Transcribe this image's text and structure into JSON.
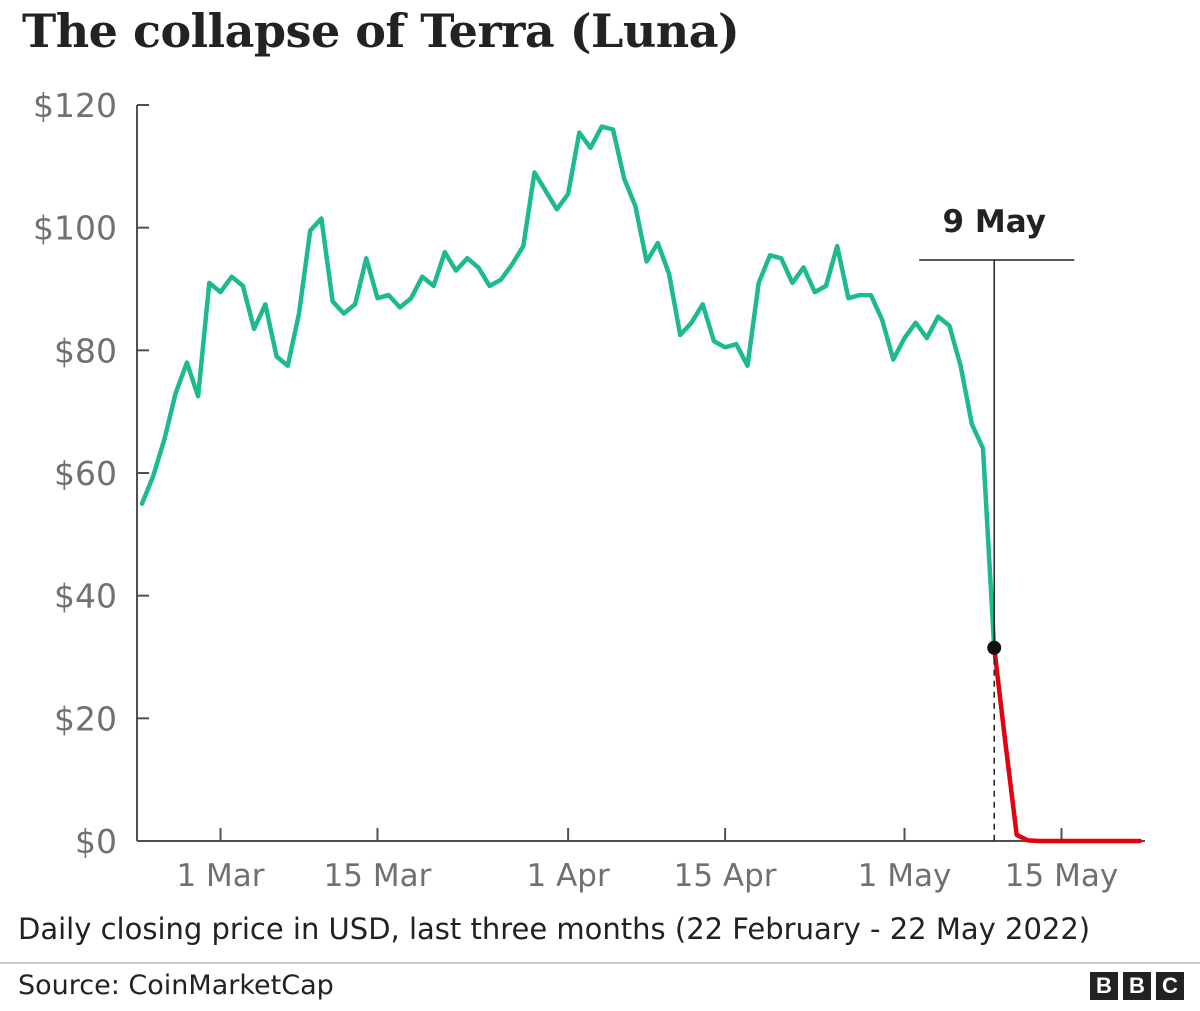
{
  "chart_data": {
    "type": "line",
    "title": "The collapse of Terra (Luna)",
    "subtitle": "Daily closing price in USD, last three months (22 February - 22 May 2022)",
    "source": "Source: CoinMarketCap",
    "ylim": [
      0,
      120
    ],
    "y_ticks": [
      0,
      20,
      40,
      60,
      80,
      100,
      120
    ],
    "y_tick_labels": [
      "$0",
      "$20",
      "$40",
      "$60",
      "$80",
      "$100",
      "$120"
    ],
    "x_ticks": [
      "2022-03-01",
      "2022-03-15",
      "2022-04-01",
      "2022-04-15",
      "2022-05-01",
      "2022-05-15"
    ],
    "x_tick_labels": [
      "1 Mar",
      "15 Mar",
      "1 Apr",
      "15 Apr",
      "1 May",
      "15 May"
    ],
    "grid": false,
    "annotation": {
      "label": "9 May",
      "date": "2022-05-09"
    },
    "colors": {
      "before": "#1db990",
      "after": "#e3000f"
    },
    "x": [
      "2022-02-22",
      "2022-02-23",
      "2022-02-24",
      "2022-02-25",
      "2022-02-26",
      "2022-02-27",
      "2022-02-28",
      "2022-03-01",
      "2022-03-02",
      "2022-03-03",
      "2022-03-04",
      "2022-03-05",
      "2022-03-06",
      "2022-03-07",
      "2022-03-08",
      "2022-03-09",
      "2022-03-10",
      "2022-03-11",
      "2022-03-12",
      "2022-03-13",
      "2022-03-14",
      "2022-03-15",
      "2022-03-16",
      "2022-03-17",
      "2022-03-18",
      "2022-03-19",
      "2022-03-20",
      "2022-03-21",
      "2022-03-22",
      "2022-03-23",
      "2022-03-24",
      "2022-03-25",
      "2022-03-26",
      "2022-03-27",
      "2022-03-28",
      "2022-03-29",
      "2022-03-30",
      "2022-03-31",
      "2022-04-01",
      "2022-04-02",
      "2022-04-03",
      "2022-04-04",
      "2022-04-05",
      "2022-04-06",
      "2022-04-07",
      "2022-04-08",
      "2022-04-09",
      "2022-04-10",
      "2022-04-11",
      "2022-04-12",
      "2022-04-13",
      "2022-04-14",
      "2022-04-15",
      "2022-04-16",
      "2022-04-17",
      "2022-04-18",
      "2022-04-19",
      "2022-04-20",
      "2022-04-21",
      "2022-04-22",
      "2022-04-23",
      "2022-04-24",
      "2022-04-25",
      "2022-04-26",
      "2022-04-27",
      "2022-04-28",
      "2022-04-29",
      "2022-04-30",
      "2022-05-01",
      "2022-05-02",
      "2022-05-03",
      "2022-05-04",
      "2022-05-05",
      "2022-05-06",
      "2022-05-07",
      "2022-05-08",
      "2022-05-09",
      "2022-05-10",
      "2022-05-11",
      "2022-05-12",
      "2022-05-13",
      "2022-05-14",
      "2022-05-15",
      "2022-05-16",
      "2022-05-17",
      "2022-05-18",
      "2022-05-19",
      "2022-05-20",
      "2022-05-21",
      "2022-05-22"
    ],
    "series": [
      {
        "values": [
          55.0,
          59.5,
          65.5,
          73.0,
          78.0,
          72.5,
          91.0,
          89.5,
          92.0,
          90.5,
          83.5,
          87.5,
          79.0,
          77.5,
          86.0,
          99.5,
          101.5,
          88.0,
          86.0,
          87.5,
          95.0,
          88.5,
          89.0,
          87.0,
          88.5,
          92.0,
          90.5,
          96.0,
          93.0,
          95.0,
          93.5,
          90.5,
          91.5,
          94.0,
          97.0,
          109.0,
          106.0,
          103.0,
          105.5,
          115.5,
          113.0,
          116.5,
          116.0,
          108.0,
          103.5,
          94.5,
          97.5,
          92.5,
          82.5,
          84.5,
          87.5,
          81.5,
          80.5,
          81.0,
          77.5,
          91.0,
          95.5,
          95.0,
          91.0,
          93.5,
          89.5,
          90.5,
          97.0,
          88.5,
          89.0,
          89.0,
          85.0,
          78.5,
          82.0,
          84.5,
          82.0,
          85.5,
          84.0,
          77.5,
          68.0,
          64.0,
          31.5,
          16.0,
          1.0,
          0.1,
          0.0,
          0.0,
          0.0,
          0.0,
          0.0,
          0.0,
          0.0,
          0.0,
          0.0,
          0.0
        ]
      }
    ]
  }
}
